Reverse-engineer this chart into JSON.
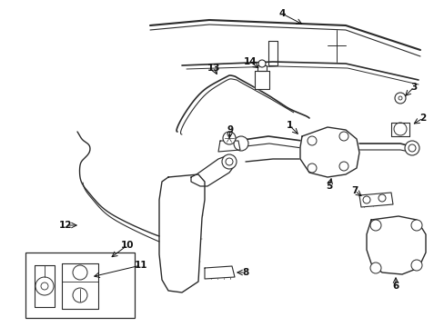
{
  "background_color": "#ffffff",
  "line_color": "#2a2a2a",
  "fig_width": 4.89,
  "fig_height": 3.6,
  "dpi": 100,
  "label_fontsize": 7.5,
  "label_color": "#111111"
}
